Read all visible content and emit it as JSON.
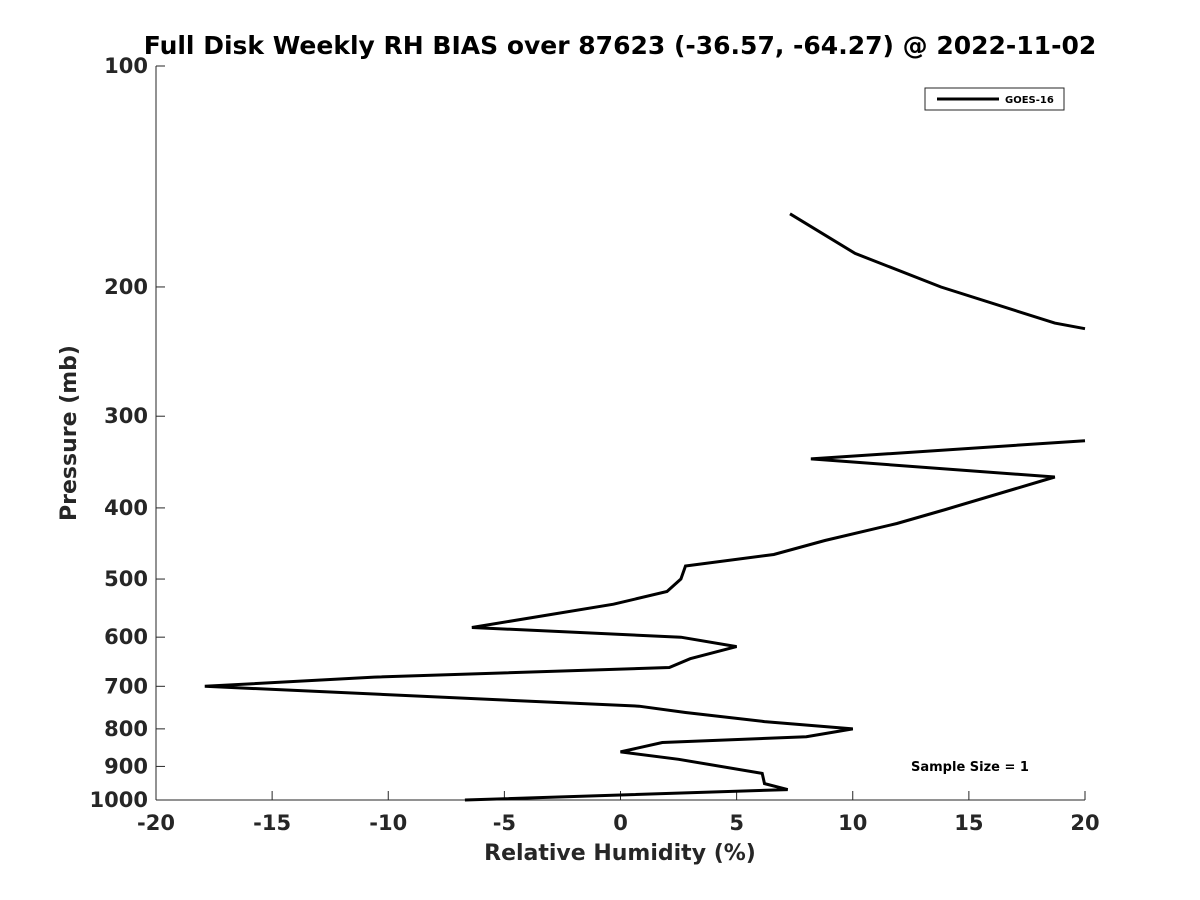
{
  "chart_data": {
    "type": "line",
    "title": "Full Disk Weekly RH BIAS over 87623 (-36.57, -64.27) @ 2022-11-02",
    "xlabel": "Relative Humidity (%)",
    "ylabel": "Pressure (mb)",
    "xlim": [
      -20,
      20
    ],
    "ylim": [
      100,
      1000
    ],
    "y_scale": "log",
    "y_reversed": true,
    "x_ticks": [
      "-20",
      "-15",
      "-10",
      "-5",
      "0",
      "5",
      "10",
      "15",
      "20"
    ],
    "y_ticks": [
      "100",
      "200",
      "300",
      "400",
      "500",
      "600",
      "700",
      "800",
      "900",
      "1000"
    ],
    "grid": false,
    "legend_position": "top-right",
    "series": [
      {
        "name": "GOES-16",
        "color": "#000000",
        "x": [
          7.3,
          10.1,
          13.8,
          18.7,
          20.0,
          null,
          20.0,
          8.2,
          18.7,
          14.0,
          11.9,
          8.8,
          6.6,
          2.8,
          2.6,
          2.0,
          -0.3,
          -6.4,
          2.6,
          5.0,
          3.0,
          2.1,
          -10.6,
          -17.9,
          0.8,
          2.8,
          6.2,
          10.0,
          8.0,
          1.8,
          0.0,
          2.5,
          6.1,
          6.2,
          7.2,
          -6.7
        ],
        "y": [
          159,
          180,
          200,
          224,
          228,
          null,
          324,
          343,
          363,
          402,
          420,
          443,
          463,
          480,
          500,
          520,
          541,
          582,
          600,
          618,
          642,
          660,
          680,
          700,
          745,
          760,
          782,
          800,
          820,
          835,
          860,
          880,
          920,
          950,
          968,
          1003
        ]
      }
    ],
    "annotations": [
      "Sample Size = 1"
    ]
  }
}
